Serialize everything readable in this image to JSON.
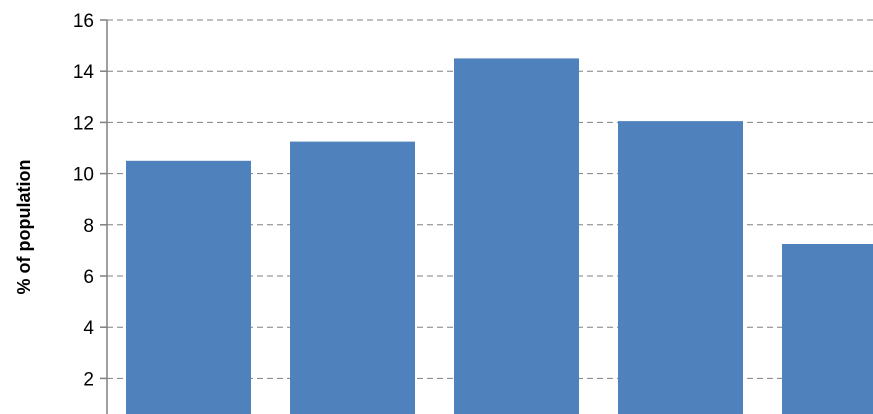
{
  "chart_data": {
    "type": "bar",
    "ylabel": "% of population",
    "ylim": [
      0,
      16
    ],
    "yticks": [
      "2",
      "4",
      "6",
      "8",
      "10",
      "12",
      "14",
      "16"
    ],
    "grid": true,
    "bar_color": "#4F81BD",
    "series": [
      {
        "values": [
          10.5,
          11.25,
          14.5,
          12.05,
          7.25
        ]
      }
    ]
  }
}
